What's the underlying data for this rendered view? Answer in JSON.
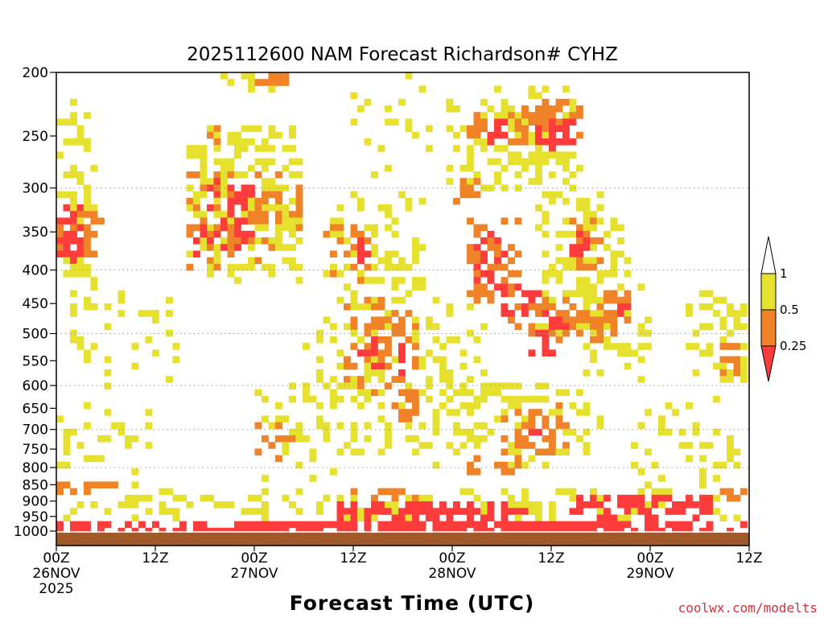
{
  "chart_data": {
    "type": "heatmap",
    "title": "2025112600 NAM Forecast Richardson# CYHZ",
    "xlabel": "Forecast Time (UTC)",
    "ylabel": "",
    "credit": "coolwx.com/modelts",
    "y_axis": {
      "scale": "pressure (hPa), reversed",
      "range": [
        1015,
        200
      ],
      "tick_labels": [
        "200",
        "250",
        "300",
        "350",
        "400",
        "450",
        "500",
        "550",
        "600",
        "650",
        "700",
        "750",
        "800",
        "850",
        "900",
        "950",
        "1000"
      ],
      "grid": "dotted at 300, 400, 500, 600, 700, 800"
    },
    "x_axis": {
      "range_hours": [
        0,
        84
      ],
      "ticks": [
        {
          "hour": 0,
          "lines": [
            "00Z",
            "26NOV",
            "2025"
          ]
        },
        {
          "hour": 12,
          "lines": [
            "12Z"
          ]
        },
        {
          "hour": 24,
          "lines": [
            "00Z",
            "27NOV"
          ]
        },
        {
          "hour": 36,
          "lines": [
            "12Z"
          ]
        },
        {
          "hour": 48,
          "lines": [
            "00Z",
            "28NOV"
          ]
        },
        {
          "hour": 60,
          "lines": [
            "12Z"
          ]
        },
        {
          "hour": 72,
          "lines": [
            "00Z",
            "29NOV"
          ]
        },
        {
          "hour": 84,
          "lines": [
            "12Z"
          ]
        }
      ]
    },
    "colorbar": {
      "placement": "right",
      "labels": [
        "1",
        "0.5",
        "0.25"
      ],
      "bins": [
        {
          "name": "Ri > 1",
          "color": "#ffffff"
        },
        {
          "name": "0.5 - 1",
          "color": "#e6e12f"
        },
        {
          "name": "0.25 - 0.5",
          "color": "#f08228"
        },
        {
          "name": "< 0.25",
          "color": "#ff3c3c"
        }
      ]
    },
    "ground_color": "#a05a2c",
    "regions": [
      {
        "category": "low",
        "hours": [
          0,
          84
        ],
        "pressures": [
          960,
          1012
        ],
        "density": 0.95
      },
      {
        "category": "low",
        "hours": [
          34,
          58
        ],
        "pressures": [
          895,
          960
        ],
        "density": 0.8
      },
      {
        "category": "low",
        "hours": [
          62,
          80
        ],
        "pressures": [
          880,
          960
        ],
        "density": 0.85
      },
      {
        "category": "mid",
        "hours": [
          0,
          8
        ],
        "pressures": [
          835,
          880
        ],
        "density": 0.6
      },
      {
        "category": "mid",
        "hours": [
          80,
          84
        ],
        "pressures": [
          860,
          900
        ],
        "density": 0.6
      },
      {
        "category": "mid",
        "hours": [
          36,
          46
        ],
        "pressures": [
          860,
          895
        ],
        "density": 0.5
      },
      {
        "category": "high",
        "hours": [
          0,
          84
        ],
        "pressures": [
          860,
          960
        ],
        "density": 0.35
      },
      {
        "category": "mid",
        "hours": [
          0,
          6
        ],
        "pressures": [
          325,
          380
        ],
        "density": 0.6
      },
      {
        "category": "low",
        "hours": [
          0,
          3
        ],
        "pressures": [
          320,
          400
        ],
        "density": 0.7
      },
      {
        "category": "high",
        "hours": [
          0,
          5
        ],
        "pressures": [
          220,
          560
        ],
        "density": 0.45
      },
      {
        "category": "mid",
        "hours": [
          16,
          25
        ],
        "pressures": [
          280,
          400
        ],
        "density": 0.5
      },
      {
        "category": "low",
        "hours": [
          17,
          24
        ],
        "pressures": [
          290,
          380
        ],
        "density": 0.5
      },
      {
        "category": "mid",
        "hours": [
          24,
          30
        ],
        "pressures": [
          280,
          380
        ],
        "density": 0.4
      },
      {
        "category": "high",
        "hours": [
          16,
          30
        ],
        "pressures": [
          240,
          420
        ],
        "density": 0.5
      },
      {
        "category": "mid",
        "hours": [
          18,
          20
        ],
        "pressures": [
          240,
          270
        ],
        "density": 0.6
      },
      {
        "category": "mid",
        "hours": [
          24,
          28
        ],
        "pressures": [
          200,
          212
        ],
        "density": 0.8
      },
      {
        "category": "high",
        "hours": [
          20,
          28
        ],
        "pressures": [
          200,
          215
        ],
        "density": 0.6
      },
      {
        "category": "mid",
        "hours": [
          32,
          38
        ],
        "pressures": [
          330,
          420
        ],
        "density": 0.4
      },
      {
        "category": "low",
        "hours": [
          36,
          38
        ],
        "pressures": [
          360,
          390
        ],
        "density": 0.6
      },
      {
        "category": "high",
        "hours": [
          32,
          45
        ],
        "pressures": [
          300,
          460
        ],
        "density": 0.4
      },
      {
        "category": "mid",
        "hours": [
          35,
          44
        ],
        "pressures": [
          440,
          620
        ],
        "density": 0.45
      },
      {
        "category": "low",
        "hours": [
          36,
          42
        ],
        "pressures": [
          500,
          580
        ],
        "density": 0.45
      },
      {
        "category": "high",
        "hours": [
          30,
          52
        ],
        "pressures": [
          440,
          760
        ],
        "density": 0.32
      },
      {
        "category": "mid",
        "hours": [
          40,
          44
        ],
        "pressures": [
          610,
          690
        ],
        "density": 0.5
      },
      {
        "category": "mid",
        "hours": [
          48,
          51
        ],
        "pressures": [
          290,
          320
        ],
        "density": 0.7
      },
      {
        "category": "low",
        "hours": [
          52,
          55
        ],
        "pressures": [
          230,
          260
        ],
        "density": 0.7
      },
      {
        "category": "mid",
        "hours": [
          50,
          52
        ],
        "pressures": [
          230,
          250
        ],
        "density": 0.7
      },
      {
        "category": "mid",
        "hours": [
          55,
          64
        ],
        "pressures": [
          220,
          260
        ],
        "density": 0.7
      },
      {
        "category": "low",
        "hours": [
          58,
          63
        ],
        "pressures": [
          235,
          262
        ],
        "density": 0.6
      },
      {
        "category": "high",
        "hours": [
          47,
          64
        ],
        "pressures": [
          210,
          300
        ],
        "density": 0.5
      },
      {
        "category": "mid",
        "hours": [
          50,
          56
        ],
        "pressures": [
          320,
          460
        ],
        "density": 0.55
      },
      {
        "category": "low",
        "hours": [
          51,
          55
        ],
        "pressures": [
          350,
          430
        ],
        "density": 0.5
      },
      {
        "category": "low",
        "hours": [
          54,
          60
        ],
        "pressures": [
          420,
          470
        ],
        "density": 0.55
      },
      {
        "category": "mid",
        "hours": [
          54,
          68
        ],
        "pressures": [
          440,
          520
        ],
        "density": 0.5
      },
      {
        "category": "low",
        "hours": [
          57,
          62
        ],
        "pressures": [
          470,
          540
        ],
        "density": 0.5
      },
      {
        "category": "high",
        "hours": [
          58,
          70
        ],
        "pressures": [
          300,
          500
        ],
        "density": 0.45
      },
      {
        "category": "mid",
        "hours": [
          62,
          66
        ],
        "pressures": [
          330,
          420
        ],
        "density": 0.5
      },
      {
        "category": "low",
        "hours": [
          62,
          65
        ],
        "pressures": [
          350,
          380
        ],
        "density": 0.6
      },
      {
        "category": "mid",
        "hours": [
          66,
          70
        ],
        "pressures": [
          430,
          510
        ],
        "density": 0.55
      },
      {
        "category": "low",
        "hours": [
          68,
          70
        ],
        "pressures": [
          450,
          470
        ],
        "density": 0.6
      },
      {
        "category": "high",
        "hours": [
          64,
          72
        ],
        "pressures": [
          420,
          600
        ],
        "density": 0.35
      },
      {
        "category": "mid",
        "hours": [
          54,
          62
        ],
        "pressures": [
          640,
          760
        ],
        "density": 0.6
      },
      {
        "category": "low",
        "hours": [
          56,
          61
        ],
        "pressures": [
          680,
          720
        ],
        "density": 0.55
      },
      {
        "category": "mid",
        "hours": [
          50,
          58
        ],
        "pressures": [
          760,
          830
        ],
        "density": 0.55
      },
      {
        "category": "high",
        "hours": [
          46,
          66
        ],
        "pressures": [
          600,
          800
        ],
        "density": 0.3
      },
      {
        "category": "high",
        "hours": [
          76,
          84
        ],
        "pressures": [
          420,
          610
        ],
        "density": 0.4
      },
      {
        "category": "mid",
        "hours": [
          80,
          84
        ],
        "pressures": [
          520,
          580
        ],
        "density": 0.4
      },
      {
        "category": "high",
        "hours": [
          4,
          16
        ],
        "pressures": [
          430,
          620
        ],
        "density": 0.15
      },
      {
        "category": "high",
        "hours": [
          0,
          12
        ],
        "pressures": [
          640,
          880
        ],
        "density": 0.15
      },
      {
        "category": "high",
        "hours": [
          24,
          36
        ],
        "pressures": [
          600,
          850
        ],
        "density": 0.2
      },
      {
        "category": "mid",
        "hours": [
          24,
          30
        ],
        "pressures": [
          690,
          780
        ],
        "density": 0.3
      },
      {
        "category": "high",
        "hours": [
          70,
          84
        ],
        "pressures": [
          620,
          880
        ],
        "density": 0.2
      },
      {
        "category": "high",
        "hours": [
          36,
          46
        ],
        "pressures": [
          200,
          300
        ],
        "density": 0.2
      }
    ]
  }
}
